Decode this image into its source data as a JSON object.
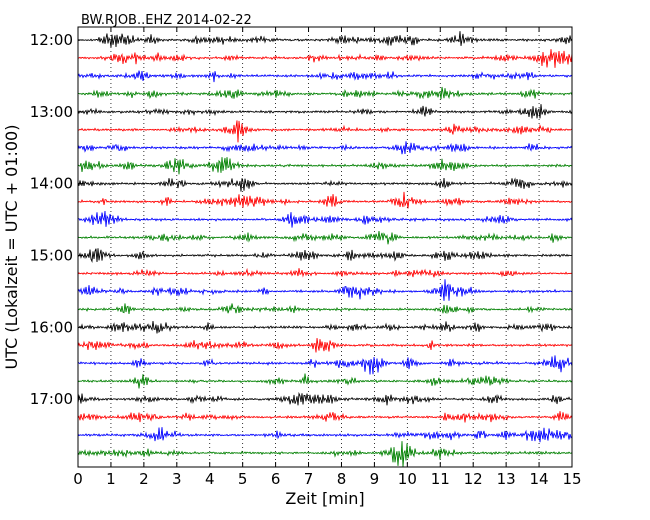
{
  "chart_data": {
    "type": "line",
    "title": "BW.RJOB..EHZ 2014-02-22",
    "xlabel": "Zeit  [min]",
    "ylabel": "UTC (Lokalzeit = UTC + 01:00)",
    "xlim": [
      0,
      15
    ],
    "x_ticks": [
      "0",
      "1",
      "2",
      "3",
      "4",
      "5",
      "6",
      "7",
      "8",
      "9",
      "10",
      "11",
      "12",
      "13",
      "14",
      "15"
    ],
    "y_tick_labels": [
      "12:00",
      "13:00",
      "14:00",
      "15:00",
      "16:00",
      "17:00"
    ],
    "grid": "vertical dotted lines at each minute",
    "traces_per_hour": 4,
    "trace_minutes": 15,
    "trace_colors": [
      "#000000",
      "#ff0000",
      "#0000ff",
      "#008000"
    ],
    "traces": [
      {
        "start": "12:00"
      },
      {
        "start": "12:15"
      },
      {
        "start": "12:30"
      },
      {
        "start": "12:45"
      },
      {
        "start": "13:00"
      },
      {
        "start": "13:15"
      },
      {
        "start": "13:30"
      },
      {
        "start": "13:45"
      },
      {
        "start": "14:00"
      },
      {
        "start": "14:15"
      },
      {
        "start": "14:30"
      },
      {
        "start": "14:45"
      },
      {
        "start": "15:00"
      },
      {
        "start": "15:15"
      },
      {
        "start": "15:30"
      },
      {
        "start": "15:45"
      },
      {
        "start": "16:00"
      },
      {
        "start": "16:15"
      },
      {
        "start": "16:30"
      },
      {
        "start": "16:45"
      },
      {
        "start": "17:00"
      },
      {
        "start": "17:15"
      },
      {
        "start": "17:30"
      },
      {
        "start": "17:45"
      }
    ]
  }
}
